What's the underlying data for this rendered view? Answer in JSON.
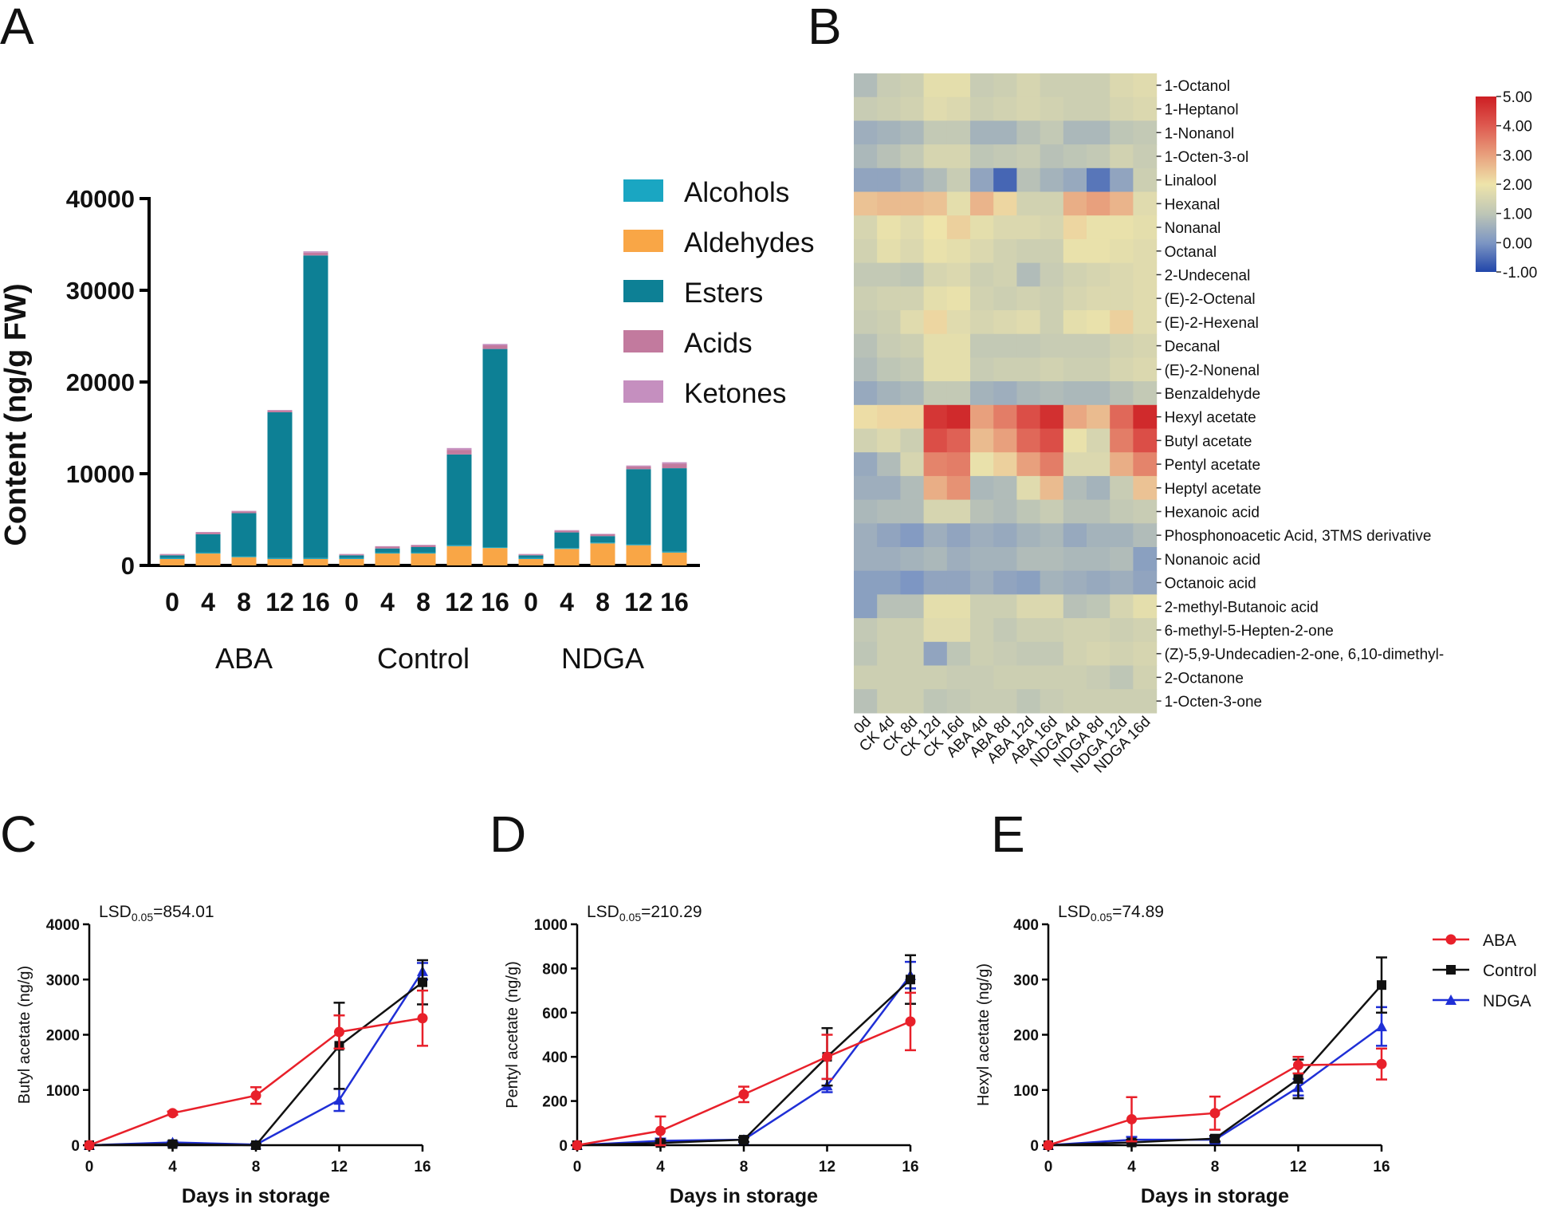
{
  "panels": {
    "a": "A",
    "b": "B",
    "c": "C",
    "d": "D",
    "e": "E"
  },
  "colors": {
    "alcohols": "#1aa6c2",
    "aldehydes": "#f9a646",
    "esters": "#0d8095",
    "acids": "#c27a9e",
    "ketones": "#c58fbf",
    "aba": "#e8202a",
    "control": "#111111",
    "ndga": "#1f2fd6"
  },
  "chart_data": [
    {
      "panel": "A",
      "type": "bar",
      "stacked": true,
      "ylabel": "Content (ng/g FW)",
      "ylim": [
        0,
        40000
      ],
      "yticks": [
        "0",
        "10000",
        "20000",
        "30000",
        "40000"
      ],
      "groups": [
        "ABA",
        "Control",
        "NDGA"
      ],
      "categories": [
        "0",
        "4",
        "8",
        "12",
        "16",
        "0",
        "4",
        "8",
        "12",
        "16",
        "0",
        "4",
        "8",
        "12",
        "16"
      ],
      "series": [
        {
          "name": "Aldehydes",
          "values": [
            700,
            1300,
            900,
            700,
            700,
            700,
            1300,
            1300,
            2100,
            1900,
            700,
            1800,
            2400,
            2200,
            1400
          ]
        },
        {
          "name": "Alcohols",
          "values": [
            100,
            100,
            100,
            100,
            100,
            100,
            100,
            100,
            100,
            100,
            100,
            100,
            100,
            100,
            100
          ]
        },
        {
          "name": "Esters",
          "values": [
            300,
            2000,
            4700,
            15900,
            33000,
            300,
            450,
            600,
            9900,
            21600,
            300,
            1700,
            700,
            8200,
            9100
          ]
        },
        {
          "name": "Acids",
          "values": [
            100,
            200,
            200,
            200,
            300,
            100,
            200,
            200,
            500,
            400,
            100,
            200,
            200,
            300,
            500
          ]
        },
        {
          "name": "Ketones",
          "values": [
            50,
            50,
            50,
            50,
            150,
            50,
            50,
            50,
            200,
            150,
            50,
            50,
            50,
            100,
            150
          ]
        }
      ],
      "legend": [
        "Alcohols",
        "Aldehydes",
        "Esters",
        "Acids",
        "Ketones"
      ],
      "legend_position": "top-right"
    },
    {
      "panel": "B",
      "type": "heatmap",
      "columns": [
        "0d",
        "CK 4d",
        "CK 8d",
        "CK 12d",
        "CK 16d",
        "ABA 4d",
        "ABA 8d",
        "ABA 12d",
        "ABA 16d",
        "NDGA 4d",
        "NDGA 8d",
        "NDGA 12d",
        "NDGA 16d"
      ],
      "rows": [
        "1-Octanol",
        "1-Heptanol",
        "1-Nonanol",
        "1-Octen-3-ol",
        "Linalool",
        "Hexanal",
        "Nonanal",
        "Octanal",
        "2-Undecenal",
        "(E)-2-Octenal",
        "(E)-2-Hexenal",
        "Decanal",
        "(E)-2-Nonenal",
        "Benzaldehyde",
        "Hexyl acetate",
        "Butyl acetate",
        "Pentyl acetate",
        "Heptyl acetate",
        "Hexanoic acid",
        "Phosphonoacetic Acid, 3TMS derivative",
        "Nonanoic acid",
        "Octanoic acid",
        "2-methyl-Butanoic acid",
        "6-methyl-5-Hepten-2-one",
        "(Z)-5,9-Undecadien-2-one, 6,10-dimethyl-",
        "2-Octanone",
        "1-Octen-3-one"
      ],
      "scale_range": [
        -1,
        5
      ],
      "scale_ticks": [
        "5.00",
        "4.00",
        "3.00",
        "2.00",
        "1.00",
        "0.00",
        "-1.00"
      ],
      "values": [
        [
          0.8,
          1.2,
          1.3,
          1.8,
          1.8,
          1.2,
          1.3,
          1.5,
          1.3,
          1.3,
          1.3,
          1.6,
          1.7
        ],
        [
          1.2,
          1.3,
          1.4,
          1.7,
          1.6,
          1.3,
          1.4,
          1.5,
          1.4,
          1.3,
          1.3,
          1.5,
          1.6
        ],
        [
          0.5,
          0.6,
          0.7,
          1.1,
          1.1,
          0.6,
          0.6,
          0.9,
          1.1,
          0.7,
          0.7,
          1.0,
          1.1
        ],
        [
          0.7,
          0.9,
          1.1,
          1.5,
          1.5,
          1.0,
          1.1,
          1.2,
          0.9,
          1.0,
          1.1,
          1.4,
          1.2
        ],
        [
          0.3,
          0.3,
          0.5,
          0.8,
          1.2,
          0.3,
          -0.6,
          0.9,
          0.6,
          0.4,
          -0.4,
          0.3,
          1.3
        ],
        [
          2.5,
          2.6,
          2.6,
          2.5,
          1.8,
          2.7,
          2.2,
          1.4,
          1.4,
          2.8,
          3.0,
          2.7,
          1.7
        ],
        [
          1.5,
          1.9,
          1.7,
          2.0,
          2.3,
          1.8,
          1.6,
          1.6,
          1.5,
          2.2,
          1.9,
          1.9,
          1.8
        ],
        [
          1.4,
          1.8,
          1.6,
          1.9,
          1.8,
          1.6,
          1.4,
          1.3,
          1.3,
          1.9,
          1.9,
          1.8,
          1.7
        ],
        [
          1.1,
          1.1,
          1.0,
          1.5,
          1.6,
          1.3,
          1.4,
          0.8,
          1.2,
          1.4,
          1.5,
          1.6,
          1.7
        ],
        [
          1.3,
          1.4,
          1.4,
          1.8,
          1.9,
          1.4,
          1.3,
          1.4,
          1.3,
          1.5,
          1.6,
          1.6,
          1.7
        ],
        [
          1.2,
          1.3,
          1.7,
          2.2,
          1.7,
          1.5,
          1.6,
          1.7,
          1.3,
          1.8,
          1.9,
          2.3,
          1.7
        ],
        [
          0.9,
          1.2,
          1.3,
          1.8,
          1.8,
          1.1,
          1.1,
          1.1,
          1.2,
          1.2,
          1.2,
          1.4,
          1.5
        ],
        [
          0.8,
          1.0,
          1.1,
          1.8,
          1.8,
          1.2,
          1.3,
          1.3,
          1.4,
          1.3,
          1.3,
          1.5,
          1.6
        ],
        [
          0.4,
          0.6,
          0.7,
          1.1,
          1.1,
          0.6,
          0.5,
          0.7,
          0.8,
          0.7,
          0.7,
          0.9,
          1.1
        ],
        [
          2.1,
          2.2,
          2.2,
          4.6,
          4.8,
          3.0,
          3.5,
          4.2,
          4.7,
          2.9,
          2.6,
          3.8,
          4.8
        ],
        [
          1.4,
          1.6,
          1.3,
          4.2,
          3.9,
          2.6,
          3.0,
          3.8,
          4.2,
          1.9,
          1.5,
          3.5,
          4.2
        ],
        [
          0.4,
          0.8,
          1.5,
          3.4,
          3.5,
          1.9,
          2.3,
          3.0,
          3.5,
          1.6,
          1.6,
          2.8,
          3.4
        ],
        [
          0.5,
          0.5,
          0.8,
          2.8,
          3.2,
          0.7,
          0.8,
          1.7,
          2.6,
          0.8,
          0.6,
          1.2,
          2.5
        ],
        [
          0.7,
          0.8,
          0.8,
          1.5,
          1.5,
          0.9,
          0.8,
          1.0,
          1.2,
          0.9,
          0.9,
          1.1,
          1.2
        ],
        [
          0.5,
          0.3,
          0.1,
          0.5,
          0.3,
          0.5,
          0.4,
          0.6,
          0.7,
          0.4,
          0.6,
          0.6,
          0.8
        ],
        [
          0.5,
          0.5,
          0.6,
          0.7,
          0.5,
          0.6,
          0.6,
          0.8,
          0.8,
          0.7,
          0.7,
          0.8,
          0.2
        ],
        [
          0.2,
          0.2,
          0.0,
          0.3,
          0.3,
          0.5,
          0.3,
          0.2,
          0.6,
          0.5,
          0.4,
          0.5,
          0.3
        ],
        [
          0.2,
          0.9,
          0.9,
          1.8,
          1.8,
          1.3,
          1.3,
          1.6,
          1.6,
          0.9,
          1.0,
          1.5,
          1.8
        ],
        [
          1.1,
          1.3,
          1.3,
          1.7,
          1.7,
          1.3,
          1.1,
          1.3,
          1.3,
          1.4,
          1.4,
          1.3,
          1.4
        ],
        [
          1.0,
          1.3,
          1.3,
          0.3,
          1.0,
          1.3,
          1.2,
          1.1,
          1.1,
          1.4,
          1.5,
          1.4,
          1.5
        ],
        [
          1.3,
          1.3,
          1.3,
          1.3,
          1.2,
          1.2,
          1.3,
          1.3,
          1.3,
          1.3,
          1.2,
          1.0,
          1.4
        ],
        [
          0.9,
          1.3,
          1.3,
          1.0,
          1.1,
          1.2,
          1.2,
          1.0,
          1.2,
          1.3,
          1.3,
          1.3,
          1.3
        ]
      ]
    },
    {
      "panel": "C",
      "type": "line",
      "ylabel": "Butyl acetate (ng/g)",
      "xlabel": "Days in storage",
      "annotation": {
        "lsd": "LSD",
        "sub": "0.05",
        "value": "=854.01"
      },
      "x": [
        0,
        4,
        8,
        12,
        16
      ],
      "xticks": [
        "0",
        "4",
        "8",
        "12",
        "16"
      ],
      "ylim": [
        0,
        4000
      ],
      "yticks": [
        "0",
        "1000",
        "2000",
        "3000",
        "4000"
      ],
      "series": [
        {
          "name": "ABA",
          "values": [
            0,
            580,
            900,
            2050,
            2300
          ],
          "err": [
            0,
            30,
            150,
            300,
            500
          ]
        },
        {
          "name": "Control",
          "values": [
            0,
            20,
            0,
            1800,
            2950
          ],
          "err": [
            0,
            20,
            20,
            780,
            400
          ]
        },
        {
          "name": "NDGA",
          "values": [
            0,
            50,
            10,
            820,
            3150
          ],
          "err": [
            0,
            20,
            20,
            200,
            150
          ]
        }
      ]
    },
    {
      "panel": "D",
      "type": "line",
      "ylabel": "Pentyl acetate (ng/g)",
      "xlabel": "Days in storage",
      "annotation": {
        "lsd": "LSD",
        "sub": "0.05",
        "value": "=210.29"
      },
      "x": [
        0,
        4,
        8,
        12,
        16
      ],
      "xticks": [
        "0",
        "4",
        "8",
        "12",
        "16"
      ],
      "ylim": [
        0,
        1000
      ],
      "yticks": [
        "0",
        "200",
        "400",
        "600",
        "800",
        "1000"
      ],
      "series": [
        {
          "name": "ABA",
          "values": [
            0,
            65,
            230,
            400,
            560
          ],
          "err": [
            0,
            65,
            35,
            100,
            130
          ]
        },
        {
          "name": "Control",
          "values": [
            0,
            10,
            25,
            400,
            750
          ],
          "err": [
            0,
            10,
            10,
            130,
            110
          ]
        },
        {
          "name": "NDGA",
          "values": [
            0,
            20,
            25,
            270,
            770
          ],
          "err": [
            0,
            10,
            10,
            30,
            60
          ]
        }
      ]
    },
    {
      "panel": "E",
      "type": "line",
      "ylabel": "Hexyl acetate (ng/g)",
      "xlabel": "Days in storage",
      "annotation": {
        "lsd": "LSD",
        "sub": "0.05",
        "value": "=74.89"
      },
      "x": [
        0,
        4,
        8,
        12,
        16
      ],
      "xticks": [
        "0",
        "4",
        "8",
        "12",
        "16"
      ],
      "ylim": [
        0,
        400
      ],
      "yticks": [
        "0",
        "100",
        "200",
        "300",
        "400"
      ],
      "series": [
        {
          "name": "ABA",
          "values": [
            0,
            47,
            58,
            145,
            147
          ],
          "err": [
            0,
            40,
            30,
            15,
            28
          ]
        },
        {
          "name": "Control",
          "values": [
            0,
            5,
            12,
            120,
            290
          ],
          "err": [
            0,
            5,
            5,
            35,
            50
          ]
        },
        {
          "name": "NDGA",
          "values": [
            0,
            10,
            10,
            105,
            215
          ],
          "err": [
            0,
            5,
            5,
            15,
            35
          ]
        }
      ],
      "legend": [
        "ABA",
        "Control",
        "NDGA"
      ],
      "legend_position": "right"
    }
  ]
}
